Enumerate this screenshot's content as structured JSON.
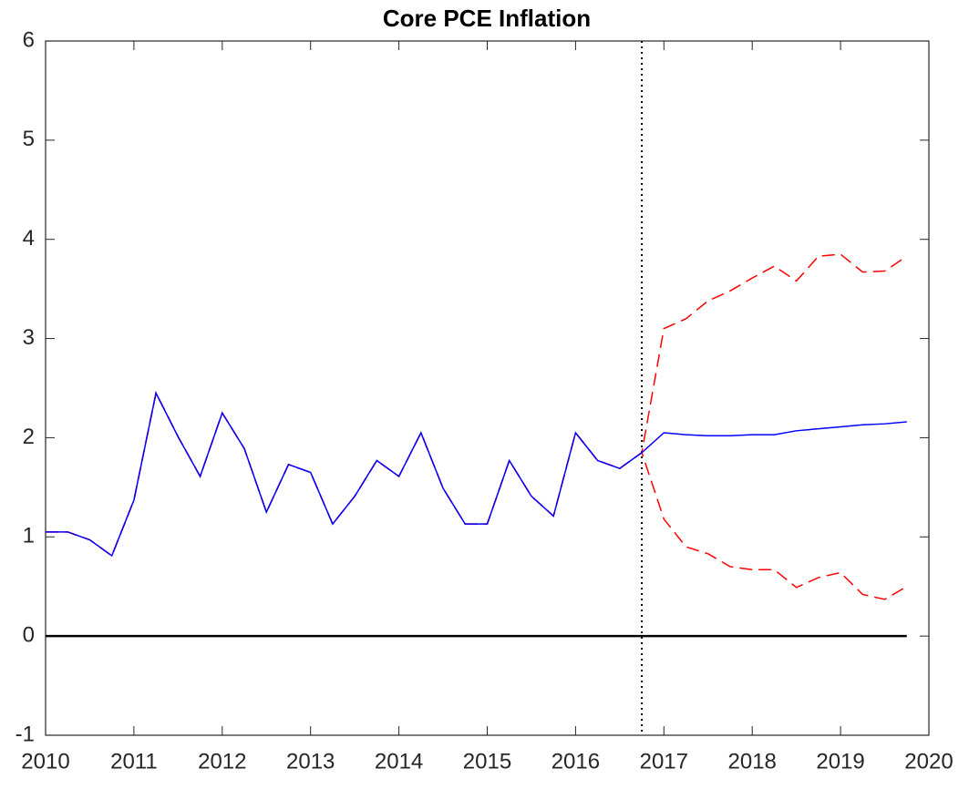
{
  "chart_data": {
    "type": "line",
    "title": "Core PCE Inflation",
    "x": [
      2010,
      2010.25,
      2010.5,
      2010.75,
      2011,
      2011.25,
      2011.5,
      2011.75,
      2012,
      2012.25,
      2012.5,
      2012.75,
      2013,
      2013.25,
      2013.5,
      2013.75,
      2014,
      2014.25,
      2014.5,
      2014.75,
      2015,
      2015.25,
      2015.5,
      2015.75,
      2016,
      2016.25,
      2016.5,
      2016.75,
      2017,
      2017.25,
      2017.5,
      2017.75,
      2018,
      2018.25,
      2018.5,
      2018.75,
      2019,
      2019.25,
      2019.5,
      2019.75
    ],
    "series": [
      {
        "color": "#ff0000",
        "dash": true,
        "values": [
          1.05,
          1.05,
          0.97,
          0.81,
          1.37,
          2.45,
          2.01,
          1.61,
          2.25,
          1.89,
          1.25,
          1.73,
          1.65,
          1.13,
          1.41,
          1.77,
          1.61,
          2.05,
          1.49,
          1.13,
          1.13,
          1.77,
          1.41,
          1.21,
          2.05,
          1.77,
          1.69,
          1.85,
          3.1,
          3.2,
          3.38,
          3.48,
          3.61,
          3.73,
          3.58,
          3.83,
          3.85,
          3.67,
          3.68,
          3.83
        ]
      },
      {
        "color": "#ff0000",
        "dash": true,
        "values": [
          1.05,
          1.05,
          0.97,
          0.81,
          1.37,
          2.45,
          2.01,
          1.61,
          2.25,
          1.89,
          1.25,
          1.73,
          1.65,
          1.13,
          1.41,
          1.77,
          1.61,
          2.05,
          1.49,
          1.13,
          1.13,
          1.77,
          1.41,
          1.21,
          2.05,
          1.77,
          1.69,
          1.85,
          1.18,
          0.9,
          0.83,
          0.7,
          0.67,
          0.67,
          0.49,
          0.59,
          0.64,
          0.42,
          0.37,
          0.5
        ]
      },
      {
        "color": "#0000ff",
        "dash": false,
        "values": [
          1.05,
          1.05,
          0.97,
          0.81,
          1.37,
          2.45,
          2.01,
          1.61,
          2.25,
          1.89,
          1.25,
          1.73,
          1.65,
          1.13,
          1.41,
          1.77,
          1.61,
          2.05,
          1.49,
          1.13,
          1.13,
          1.77,
          1.41,
          1.21,
          2.05,
          1.77,
          1.69,
          1.85,
          2.05,
          2.03,
          2.02,
          2.02,
          2.03,
          2.03,
          2.07,
          2.09,
          2.11,
          2.13,
          2.14,
          2.16
        ]
      }
    ],
    "vline": 2016.75,
    "hline": 0,
    "xlim": [
      2010,
      2020
    ],
    "xticks": [
      2010,
      2011,
      2012,
      2013,
      2014,
      2015,
      2016,
      2017,
      2018,
      2019,
      2020
    ],
    "ylim": [
      -1,
      6
    ],
    "yticks": [
      -1,
      0,
      1,
      2,
      3,
      4,
      5,
      6
    ],
    "grid": false
  }
}
